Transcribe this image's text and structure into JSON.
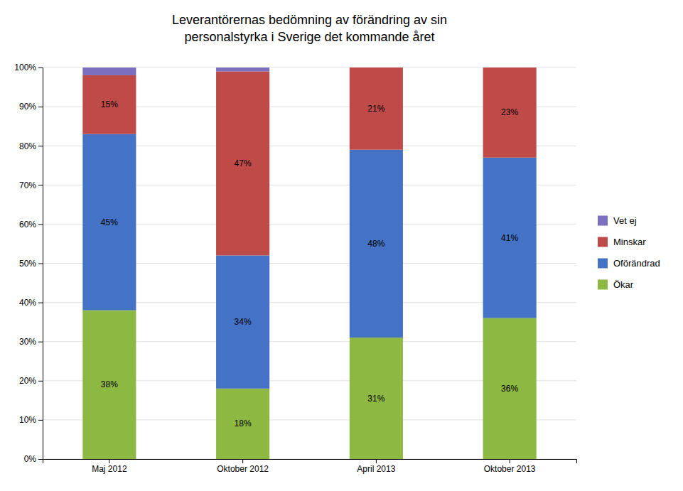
{
  "chart_data": {
    "type": "bar",
    "stacked": true,
    "title": "Leverantörernas bedömning av förändring av sin\npersonalstyrka i Sverige det kommande året",
    "categories": [
      "Maj 2012",
      "Oktober 2012",
      "April 2013",
      "Oktober 2013"
    ],
    "series": [
      {
        "name": "Ökar",
        "color": "#8db842",
        "values": [
          38,
          18,
          31,
          36
        ],
        "value_labels": [
          "38%",
          "18%",
          "31%",
          "36%"
        ]
      },
      {
        "name": "Oförändrad",
        "color": "#4472c4",
        "values": [
          45,
          34,
          48,
          41
        ],
        "value_labels": [
          "45%",
          "34%",
          "48%",
          "41%"
        ]
      },
      {
        "name": "Minskar",
        "color": "#be4b48",
        "values": [
          15,
          47,
          21,
          23
        ],
        "value_labels": [
          "15%",
          "47%",
          "21%",
          "23%"
        ]
      },
      {
        "name": "Vet ej",
        "color": "#7b6fbe",
        "values": [
          2,
          1,
          0,
          0
        ],
        "value_labels": [
          null,
          null,
          null,
          null
        ]
      }
    ],
    "ylim": [
      0,
      100
    ],
    "yticks": [
      {
        "value": 0,
        "label": "0%"
      },
      {
        "value": 10,
        "label": "10%"
      },
      {
        "value": 20,
        "label": "20%"
      },
      {
        "value": 30,
        "label": "30%"
      },
      {
        "value": 40,
        "label": "40%"
      },
      {
        "value": 50,
        "label": "50%"
      },
      {
        "value": 60,
        "label": "60%"
      },
      {
        "value": 70,
        "label": "70%"
      },
      {
        "value": 80,
        "label": "80%"
      },
      {
        "value": 90,
        "label": "90%"
      },
      {
        "value": 100,
        "label": "100%"
      }
    ],
    "grid": true,
    "data_labels": true,
    "legend": "right"
  }
}
